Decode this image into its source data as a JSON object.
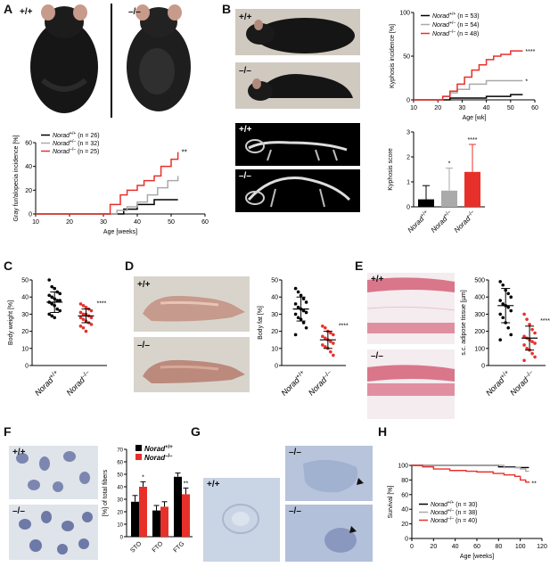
{
  "panels": {
    "A": {
      "letter": "A",
      "photo_labels": [
        "+/+",
        "–/–"
      ],
      "chart": {
        "title": "",
        "xlabel": "Age [weeks]",
        "ylabel": "Gray fur/alopecia incidence [%]",
        "xticks": [
          "10",
          "20",
          "30",
          "40",
          "50",
          "60"
        ],
        "yticks": [
          "0",
          "20",
          "40",
          "60"
        ],
        "sig": "**",
        "legend": [
          {
            "name": "Norad",
            "sup": "+/+",
            "n": "(n = 26)",
            "color": "#000000"
          },
          {
            "name": "Norad",
            "sup": "+/–",
            "n": "(n = 32)",
            "color": "#aaaaaa"
          },
          {
            "name": "Norad",
            "sup": "–/–",
            "n": "(n = 25)",
            "color": "#e8302a"
          }
        ]
      }
    },
    "B": {
      "letter": "B",
      "photo_labels": [
        "+/+",
        "–/–",
        "+/+",
        "–/–"
      ],
      "kyphosis_incidence": {
        "xlabel": "Age [wk]",
        "ylabel": "Kyphosis incidence [%]",
        "xticks": [
          "10",
          "20",
          "30",
          "40",
          "50",
          "60"
        ],
        "yticks": [
          "0",
          "50",
          "100"
        ],
        "sig_knockout": "****",
        "sig_het": "*",
        "legend": [
          {
            "name": "Norad",
            "sup": "+/+",
            "n": "(n = 53)",
            "color": "#000000"
          },
          {
            "name": "Norad",
            "sup": "+/–",
            "n": "(n = 54)",
            "color": "#aaaaaa"
          },
          {
            "name": "Norad",
            "sup": "–/–",
            "n": "(n = 48)",
            "color": "#e8302a"
          }
        ]
      },
      "kyphosis_score": {
        "ylabel": "Kyphosis score",
        "yticks": [
          "0",
          "1",
          "2",
          "3"
        ],
        "categories": [
          "Norad+/+",
          "Norad+/–",
          "Norad–/–"
        ],
        "cat_sups": [
          "+/+",
          "+/–",
          "–/–"
        ],
        "values": [
          0.3,
          0.65,
          1.4
        ],
        "errors": [
          0.55,
          0.9,
          1.1
        ],
        "colors": [
          "#000000",
          "#aaaaaa",
          "#e8302a"
        ],
        "sigs": [
          "",
          "*",
          "****"
        ]
      }
    },
    "C": {
      "letter": "C",
      "ylabel": "Body weight [%]",
      "yticks": [
        "0",
        "10",
        "20",
        "30",
        "40",
        "50"
      ],
      "categories": [
        "+/+",
        "–/–"
      ],
      "sig": "****"
    },
    "D": {
      "letter": "D",
      "photo_labels": [
        "+/+",
        "–/–"
      ],
      "ylabel": "Body fat [%]",
      "yticks": [
        "0",
        "10",
        "20",
        "30",
        "40",
        "50"
      ],
      "categories": [
        "+/+",
        "–/–"
      ],
      "sig": "****"
    },
    "E": {
      "letter": "E",
      "photo_labels": [
        "+/+",
        "–/–"
      ],
      "ylabel": "s.c. adipose tissue [µm]",
      "yticks": [
        "0",
        "100",
        "200",
        "300",
        "400",
        "500"
      ],
      "categories": [
        "+/+",
        "–/–"
      ],
      "sig": "****"
    },
    "F": {
      "letter": "F",
      "photo_labels": [
        "+/+",
        "–/–"
      ],
      "ylabel": "[%] of total fibers",
      "yticks": [
        "0",
        "10",
        "20",
        "30",
        "40",
        "50",
        "60",
        "70"
      ],
      "categories": [
        "STO",
        "FTO",
        "FTG"
      ],
      "legend": [
        {
          "name": "Norad",
          "sup": "+/+",
          "color": "#000000"
        },
        {
          "name": "Norad",
          "sup": "–/–",
          "color": "#e8302a"
        }
      ],
      "sigs": [
        "*",
        "",
        "**"
      ]
    },
    "G": {
      "letter": "G",
      "photo_labels": [
        "+/+",
        "–/–",
        "–/–"
      ]
    },
    "H": {
      "letter": "H",
      "xlabel": "Age [weeks]",
      "ylabel": "Survival [%]",
      "xticks": [
        "0",
        "20",
        "40",
        "60",
        "80",
        "100",
        "120"
      ],
      "yticks": [
        "0",
        "20",
        "40",
        "60",
        "80",
        "100"
      ],
      "sig": "**",
      "legend": [
        {
          "name": "Norad",
          "sup": "+/+",
          "n": "(n = 30)",
          "color": "#000000"
        },
        {
          "name": "Norad",
          "sup": "+/–",
          "n": "(n = 38)",
          "color": "#aaaaaa"
        },
        {
          "name": "Norad",
          "sup": "–/–",
          "n": "(n = 40)",
          "color": "#e8302a"
        }
      ]
    }
  },
  "chart_data": [
    {
      "type": "line",
      "title": "",
      "xlabel": "Age [weeks]",
      "ylabel": "Gray fur/alopecia incidence [%]",
      "xlim": [
        10,
        60
      ],
      "ylim": [
        0,
        60
      ],
      "series": [
        {
          "name": "Norad+/+ (n = 26)",
          "color": "#000000",
          "x": [
            10,
            30,
            35,
            36,
            40,
            45,
            50,
            52
          ],
          "y": [
            0,
            0,
            0,
            4,
            8,
            12,
            12,
            12
          ]
        },
        {
          "name": "Norad+/– (n = 32)",
          "color": "#aaaaaa",
          "x": [
            10,
            30,
            34,
            37,
            40,
            43,
            46,
            49,
            52
          ],
          "y": [
            0,
            0,
            3,
            6,
            10,
            16,
            22,
            28,
            32
          ]
        },
        {
          "name": "Norad–/– (n = 25)",
          "color": "#e8302a",
          "x": [
            10,
            30,
            32,
            35,
            37,
            40,
            42,
            45,
            47,
            50,
            52
          ],
          "y": [
            0,
            0,
            8,
            16,
            20,
            24,
            28,
            32,
            40,
            46,
            52
          ]
        }
      ]
    },
    {
      "type": "line",
      "title": "",
      "xlabel": "Age [wk]",
      "ylabel": "Kyphosis incidence [%]",
      "xlim": [
        10,
        60
      ],
      "ylim": [
        0,
        100
      ],
      "series": [
        {
          "name": "Norad+/+ (n = 53)",
          "color": "#000000",
          "x": [
            10,
            15,
            25,
            40,
            45,
            50,
            55
          ],
          "y": [
            0,
            0,
            2,
            4,
            4,
            6,
            6
          ]
        },
        {
          "name": "Norad+/– (n = 54)",
          "color": "#aaaaaa",
          "x": [
            10,
            18,
            22,
            25,
            28,
            33,
            40,
            45,
            55
          ],
          "y": [
            0,
            0,
            4,
            8,
            12,
            18,
            22,
            22,
            22
          ]
        },
        {
          "name": "Norad–/– (n = 48)",
          "color": "#e8302a",
          "x": [
            10,
            18,
            22,
            25,
            28,
            31,
            34,
            37,
            40,
            43,
            46,
            50,
            55
          ],
          "y": [
            0,
            0,
            4,
            10,
            18,
            26,
            34,
            40,
            46,
            50,
            52,
            56,
            56
          ]
        }
      ]
    },
    {
      "type": "bar",
      "ylabel": "Kyphosis score",
      "categories": [
        "Norad+/+",
        "Norad+/–",
        "Norad–/–"
      ],
      "values": [
        0.3,
        0.65,
        1.4
      ],
      "errors": [
        0.55,
        0.9,
        1.1
      ],
      "ylim": [
        0,
        3
      ]
    },
    {
      "type": "scatter",
      "ylabel": "Body weight [%]",
      "categories": [
        "Norad+/+",
        "Norad–/–"
      ],
      "ylim": [
        0,
        50
      ],
      "series": [
        {
          "name": "Norad+/+",
          "mean": 37,
          "sd": 6,
          "values": [
            50,
            46,
            45,
            43,
            42,
            41,
            40,
            39,
            38,
            38,
            37,
            36,
            35,
            33,
            32,
            30,
            29,
            28
          ]
        },
        {
          "name": "Norad–/–",
          "mean": 29,
          "sd": 4,
          "values": [
            36,
            35,
            34,
            33,
            32,
            31,
            30,
            30,
            29,
            28,
            28,
            27,
            26,
            25,
            24,
            23,
            22,
            20
          ]
        }
      ]
    },
    {
      "type": "scatter",
      "ylabel": "Body fat [%]",
      "categories": [
        "Norad+/+",
        "Norad–/–"
      ],
      "ylim": [
        0,
        50
      ],
      "series": [
        {
          "name": "Norad+/+",
          "mean": 33,
          "sd": 7,
          "values": [
            45,
            43,
            41,
            39,
            37,
            36,
            34,
            33,
            32,
            31,
            30,
            28,
            27,
            25,
            22,
            18
          ]
        },
        {
          "name": "Norad–/–",
          "mean": 15,
          "sd": 5,
          "values": [
            23,
            22,
            20,
            19,
            18,
            17,
            16,
            15,
            14,
            13,
            12,
            11,
            10,
            8,
            6
          ]
        }
      ]
    },
    {
      "type": "scatter",
      "ylabel": "s.c. adipose tissue [µm]",
      "categories": [
        "Norad+/+",
        "Norad–/–"
      ],
      "ylim": [
        0,
        500
      ],
      "series": [
        {
          "name": "Norad+/+",
          "mean": 350,
          "sd": 100,
          "values": [
            490,
            470,
            440,
            420,
            400,
            380,
            360,
            350,
            340,
            320,
            300,
            280,
            250,
            220,
            180,
            150
          ]
        },
        {
          "name": "Norad–/–",
          "mean": 160,
          "sd": 70,
          "values": [
            300,
            270,
            240,
            210,
            190,
            170,
            160,
            150,
            140,
            130,
            120,
            100,
            90,
            70,
            50,
            30
          ]
        }
      ]
    },
    {
      "type": "bar",
      "ylabel": "[%] of total fibers",
      "categories": [
        "STO",
        "FTO",
        "FTG"
      ],
      "ylim": [
        0,
        70
      ],
      "series": [
        {
          "name": "Norad+/+",
          "values": [
            28,
            21,
            48
          ],
          "errors": [
            5,
            4,
            3
          ]
        },
        {
          "name": "Norad–/–",
          "values": [
            40,
            24,
            34
          ],
          "errors": [
            4,
            4,
            5
          ]
        }
      ]
    },
    {
      "type": "line",
      "xlabel": "Age [weeks]",
      "ylabel": "Survival [%]",
      "xlim": [
        0,
        120
      ],
      "ylim": [
        0,
        100
      ],
      "series": [
        {
          "name": "Norad+/+ (n = 30)",
          "color": "#000000",
          "x": [
            0,
            60,
            80,
            95,
            100,
            108
          ],
          "y": [
            100,
            100,
            98,
            97,
            97,
            97
          ]
        },
        {
          "name": "Norad+/– (n = 38)",
          "color": "#aaaaaa",
          "x": [
            0,
            70,
            85,
            100,
            105,
            108
          ],
          "y": [
            100,
            100,
            97,
            95,
            92,
            92
          ]
        },
        {
          "name": "Norad–/– (n = 40)",
          "color": "#e8302a",
          "x": [
            0,
            10,
            20,
            35,
            50,
            60,
            75,
            85,
            95,
            100,
            105,
            108
          ],
          "y": [
            100,
            98,
            95,
            93,
            92,
            91,
            89,
            87,
            85,
            80,
            77,
            76
          ]
        }
      ]
    }
  ]
}
